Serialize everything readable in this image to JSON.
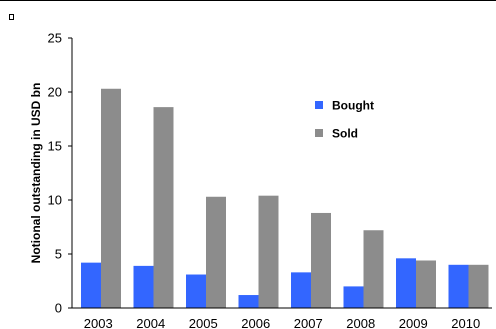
{
  "chart_data": {
    "type": "bar",
    "categories": [
      "2003",
      "2004",
      "2005",
      "2006",
      "2007",
      "2008",
      "2009",
      "2010"
    ],
    "series": [
      {
        "name": "Bought",
        "color": "#3366ff",
        "values": [
          4.2,
          3.9,
          3.1,
          1.2,
          3.3,
          2.0,
          4.6,
          4.0
        ]
      },
      {
        "name": "Sold",
        "color": "#8c8c8c",
        "values": [
          20.3,
          18.6,
          10.3,
          10.4,
          8.8,
          7.2,
          4.4,
          4.0
        ]
      }
    ],
    "title": "",
    "xlabel": "",
    "ylabel": "Notional outstanding in USD bn",
    "ylim": [
      0,
      25
    ],
    "yticks": [
      "0",
      "5",
      "10",
      "15",
      "20",
      "25"
    ],
    "grid": false,
    "legend_position": "top-center"
  }
}
